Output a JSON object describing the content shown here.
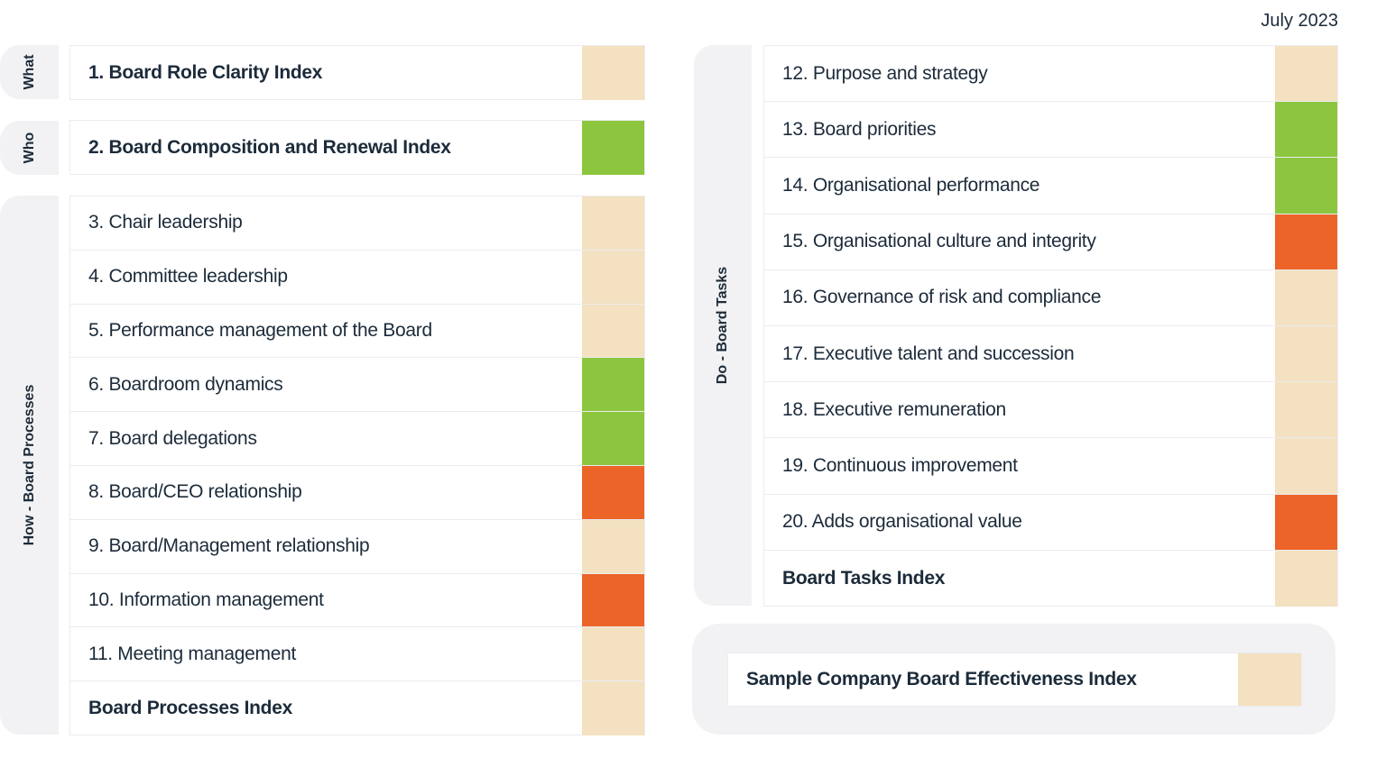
{
  "date": "July 2023",
  "colors": {
    "neutral": "#f3e1c1",
    "green": "#8cc63f",
    "orange": "#ec6428"
  },
  "groups": [
    {
      "side": "What",
      "rows": [
        {
          "label": "1. Board Role Clarity Index",
          "status": "neutral",
          "bold": true
        }
      ]
    },
    {
      "side": "Who",
      "rows": [
        {
          "label": "2. Board Composition and Renewal Index",
          "status": "green",
          "bold": true
        }
      ]
    },
    {
      "side": "How - Board Processes",
      "rows": [
        {
          "label": "3. Chair leadership",
          "status": "neutral"
        },
        {
          "label": "4. Committee leadership",
          "status": "neutral"
        },
        {
          "label": "5. Performance management of the Board",
          "status": "neutral"
        },
        {
          "label": "6. Boardroom dynamics",
          "status": "green"
        },
        {
          "label": "7. Board delegations",
          "status": "green"
        },
        {
          "label": "8. Board/CEO relationship",
          "status": "orange"
        },
        {
          "label": "9. Board/Management relationship",
          "status": "neutral"
        },
        {
          "label": "10. Information management",
          "status": "orange"
        },
        {
          "label": "11. Meeting management",
          "status": "neutral"
        },
        {
          "label": "Board Processes Index",
          "status": "neutral",
          "bold": true
        }
      ]
    },
    {
      "side": "Do - Board Tasks",
      "rows": [
        {
          "label": "12. Purpose and strategy",
          "status": "neutral"
        },
        {
          "label": "13. Board priorities",
          "status": "green"
        },
        {
          "label": "14. Organisational performance",
          "status": "green"
        },
        {
          "label": "15. Organisational culture and integrity",
          "status": "orange"
        },
        {
          "label": "16. Governance of risk and compliance",
          "status": "neutral"
        },
        {
          "label": "17. Executive talent and succession",
          "status": "neutral"
        },
        {
          "label": "18. Executive remuneration",
          "status": "neutral"
        },
        {
          "label": "19. Continuous improvement",
          "status": "neutral"
        },
        {
          "label": "20. Adds organisational value",
          "status": "orange"
        },
        {
          "label": "Board Tasks Index",
          "status": "neutral",
          "bold": true
        }
      ]
    }
  ],
  "overall": {
    "label": "Sample Company Board Effectiveness Index",
    "status": "neutral"
  }
}
